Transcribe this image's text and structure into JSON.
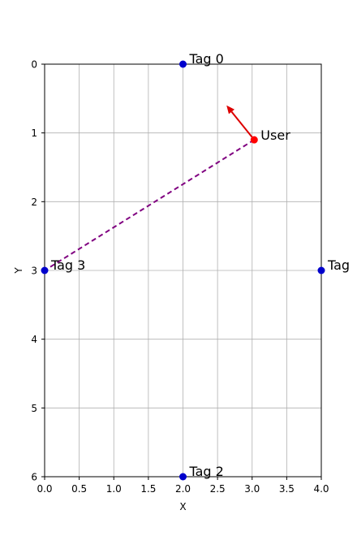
{
  "chart_data": {
    "type": "scatter",
    "title": "",
    "xlabel": "X",
    "ylabel": "Y",
    "xlim": [
      0,
      4
    ],
    "ylim": [
      6,
      0
    ],
    "y_inverted": true,
    "grid": true,
    "xticks": [
      "0.0",
      "0.5",
      "1.0",
      "1.5",
      "2.0",
      "2.5",
      "3.0",
      "3.5",
      "4.0"
    ],
    "yticks": [
      "0",
      "1",
      "2",
      "3",
      "4",
      "5",
      "6"
    ],
    "tags": [
      {
        "label": "Tag 0",
        "x": 2,
        "y": 0
      },
      {
        "label": "Tag",
        "x": 4,
        "y": 3
      },
      {
        "label": "Tag 2",
        "x": 2,
        "y": 6
      },
      {
        "label": "Tag 3",
        "x": 0,
        "y": 3
      }
    ],
    "user": {
      "label": "User",
      "x": 3.03,
      "y": 1.1
    },
    "heading_arrow": {
      "from": [
        3.03,
        1.1
      ],
      "to": [
        2.63,
        0.6
      ]
    },
    "link_line": {
      "from": [
        3.03,
        1.1
      ],
      "to": [
        0,
        3.0
      ]
    },
    "colors": {
      "tag": "#0000cc",
      "user": "#ff0000",
      "arrow": "#dd0000",
      "link": "#800080"
    }
  }
}
